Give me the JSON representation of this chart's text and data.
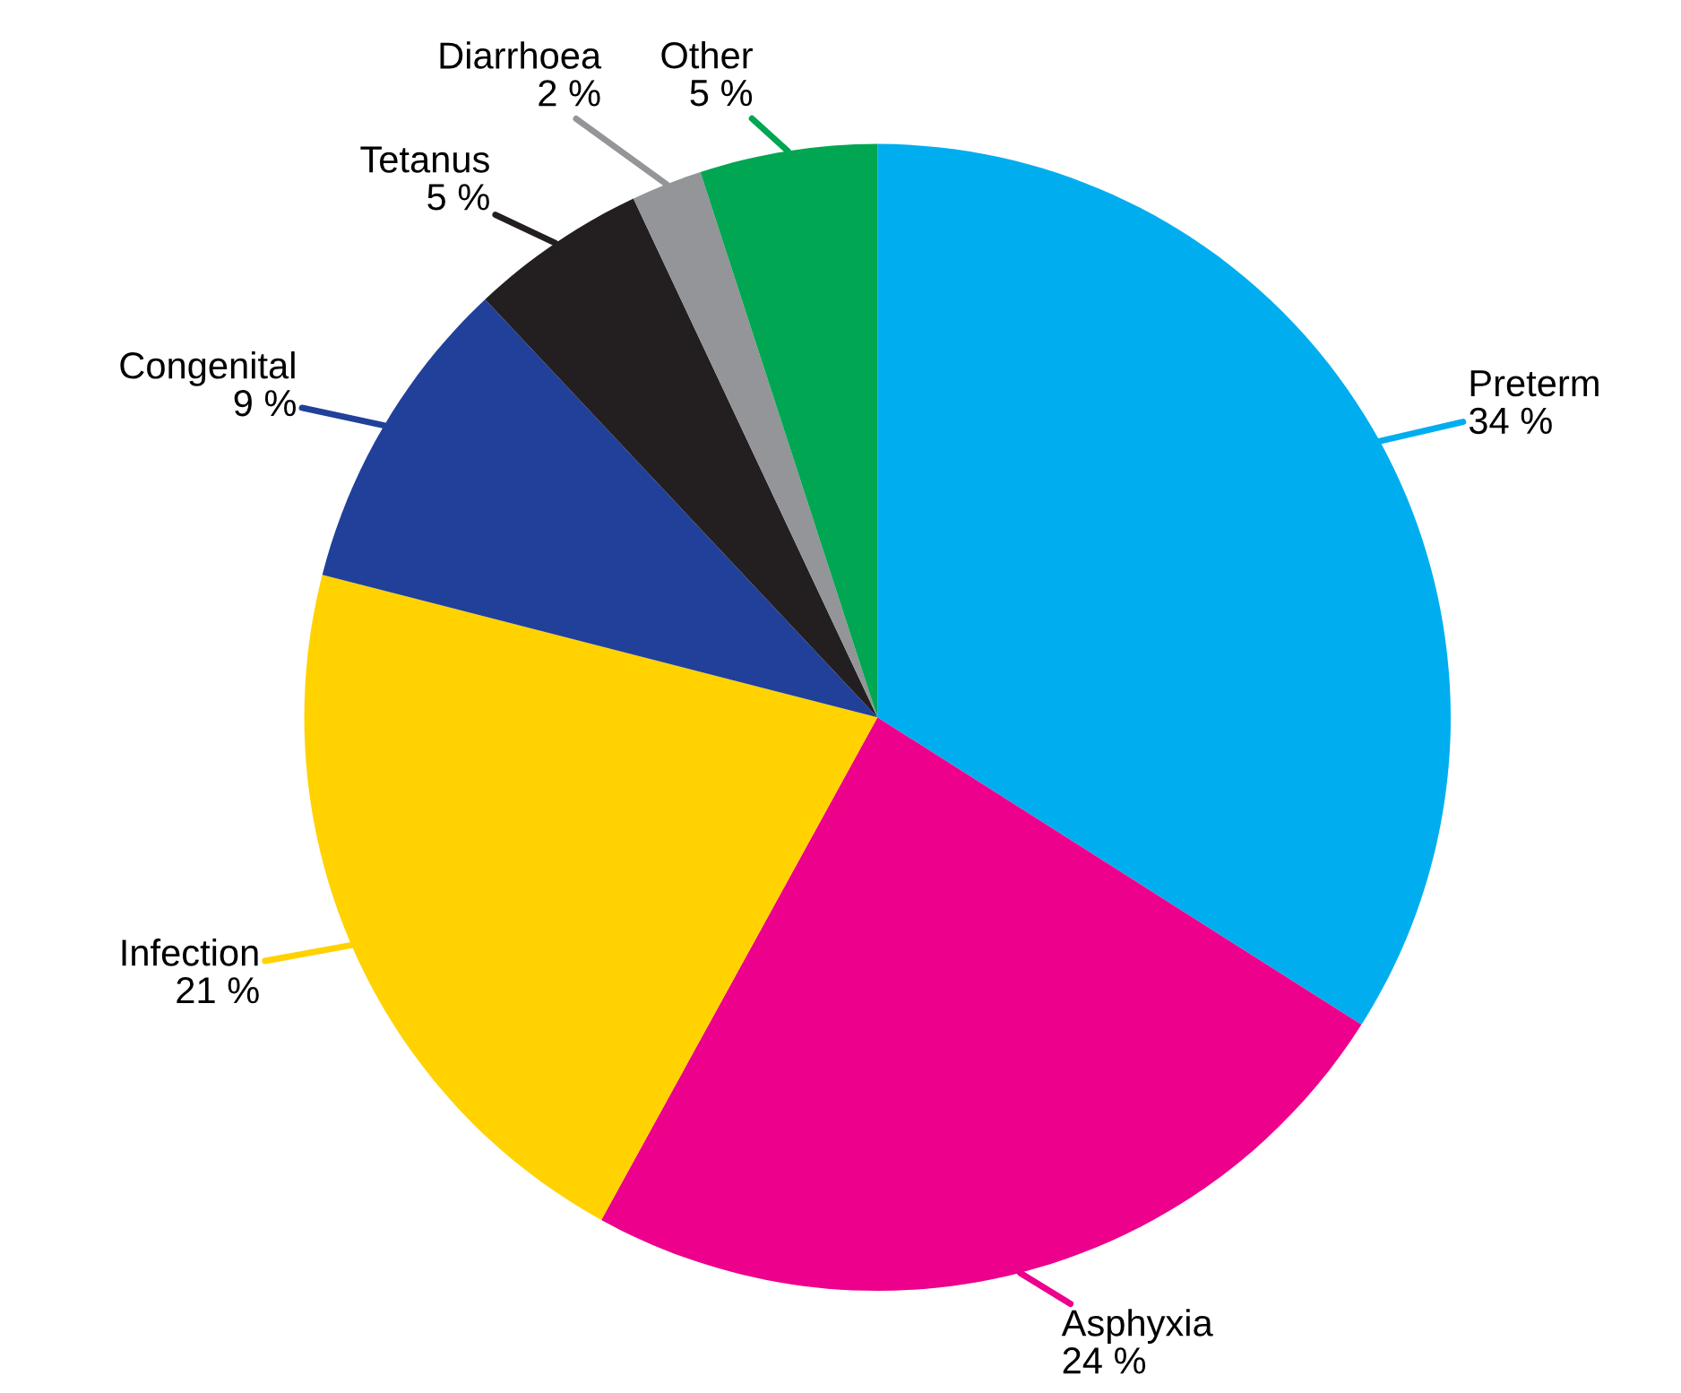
{
  "chart_data": {
    "type": "pie",
    "categories": [
      "Preterm",
      "Asphyxia",
      "Infection",
      "Congenital",
      "Tetanus",
      "Diarrhoea",
      "Other"
    ],
    "values": [
      34,
      24,
      21,
      9,
      5,
      2,
      5
    ],
    "value_labels": [
      "34 %",
      "24 %",
      "21 %",
      "9 %",
      "5 %",
      "2 %",
      "5 %"
    ],
    "colors": [
      "#00aeef",
      "#ec008c",
      "#ffd200",
      "#21409a",
      "#231f20",
      "#939598",
      "#00a651"
    ],
    "legend": false
  }
}
